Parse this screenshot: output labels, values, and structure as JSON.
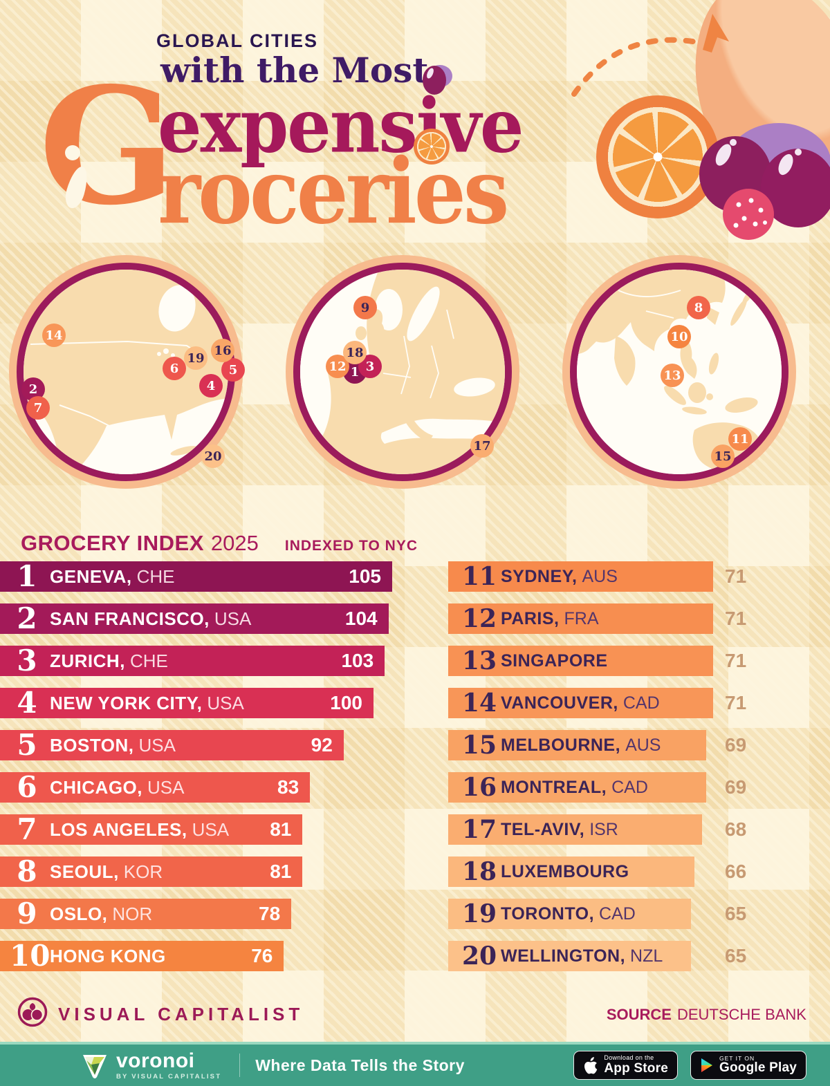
{
  "title": {
    "kicker": "GLOBAL CITIES",
    "subtitle": "with the Most",
    "word1": "expensive",
    "g": "G",
    "word2": "roceries"
  },
  "list_header": {
    "title": "GROCERY INDEX",
    "year": "2025",
    "note": "INDEXED TO NYC"
  },
  "colors": {
    "accent_magenta": "#a81b5c",
    "dark_purple": "#3b2457",
    "orange": "#f08048",
    "value_tan": "#c79a72",
    "map_ring_inner": "#9b1b5c",
    "map_ring_outer": "#f7bb8e",
    "land": "#f8dcae",
    "bottom_bar": "#3f9f86"
  },
  "rankings": [
    {
      "rank": 1,
      "city": "GENEVA",
      "country": "CHE",
      "value": 105,
      "color": "#8e1553",
      "map": 1,
      "mx": 101,
      "my": 170,
      "marker_text": "light"
    },
    {
      "rank": 2,
      "city": "SAN FRANCISCO",
      "country": "USA",
      "value": 104,
      "color": "#a31a59",
      "map": 0,
      "mx": 36,
      "my": 195,
      "marker_text": "light"
    },
    {
      "rank": 3,
      "city": "ZURICH",
      "country": "CHE",
      "value": 103,
      "color": "#c32257",
      "map": 1,
      "mx": 123,
      "my": 162,
      "marker_text": "light"
    },
    {
      "rank": 4,
      "city": "NEW YORK CITY",
      "country": "USA",
      "value": 100,
      "color": "#d93054",
      "map": 0,
      "mx": 293,
      "my": 190,
      "marker_text": "light"
    },
    {
      "rank": 5,
      "city": "BOSTON",
      "country": "USA",
      "value": 92,
      "color": "#e84650",
      "map": 0,
      "mx": 325,
      "my": 167,
      "marker_text": "light"
    },
    {
      "rank": 6,
      "city": "CHICAGO",
      "country": "USA",
      "value": 83,
      "color": "#ee574d",
      "map": 0,
      "mx": 240,
      "my": 165,
      "marker_text": "light"
    },
    {
      "rank": 7,
      "city": "LOS ANGELES",
      "country": "USA",
      "value": 81,
      "color": "#f0614b",
      "map": 0,
      "mx": 43,
      "my": 222,
      "marker_text": "light"
    },
    {
      "rank": 8,
      "city": "SEOUL",
      "country": "KOR",
      "value": 81,
      "color": "#f1654a",
      "map": 2,
      "mx": 198,
      "my": 77,
      "marker_text": "light"
    },
    {
      "rank": 9,
      "city": "OSLO",
      "country": "NOR",
      "value": 78,
      "color": "#f3784a",
      "map": 1,
      "mx": 116,
      "my": 77,
      "marker_text": "dark"
    },
    {
      "rank": 10,
      "city": "HONG KONG",
      "country": null,
      "value": 76,
      "color": "#f58440",
      "map": 2,
      "mx": 170,
      "my": 119,
      "marker_text": "light"
    },
    {
      "rank": 11,
      "city": "SYDNEY",
      "country": "AUS",
      "value": 71,
      "color": "#f78a4c",
      "map": 2,
      "mx": 258,
      "my": 267,
      "marker_text": "light"
    },
    {
      "rank": 12,
      "city": "PARIS",
      "country": "FRA",
      "value": 71,
      "color": "#f78e50",
      "map": 1,
      "mx": 76,
      "my": 162,
      "marker_text": "light"
    },
    {
      "rank": 13,
      "city": "SINGAPORE",
      "country": null,
      "value": 71,
      "color": "#f89254",
      "map": 2,
      "mx": 160,
      "my": 175,
      "marker_text": "light"
    },
    {
      "rank": 14,
      "city": "VANCOUVER",
      "country": "CAD",
      "value": 71,
      "color": "#f89658",
      "map": 0,
      "mx": 66,
      "my": 117,
      "marker_text": "light"
    },
    {
      "rank": 15,
      "city": "MELBOURNE",
      "country": "AUS",
      "value": 69,
      "color": "#f9a263",
      "map": 2,
      "mx": 233,
      "my": 292,
      "marker_text": "dark"
    },
    {
      "rank": 16,
      "city": "MONTREAL",
      "country": "CAD",
      "value": 69,
      "color": "#f9a667",
      "map": 0,
      "mx": 310,
      "my": 139,
      "marker_text": "dark"
    },
    {
      "rank": 17,
      "city": "TEL-AVIV",
      "country": "ISR",
      "value": 68,
      "color": "#faad70",
      "map": 1,
      "mx": 285,
      "my": 277,
      "marker_text": "dark"
    },
    {
      "rank": 18,
      "city": "LUXEMBOURG",
      "country": null,
      "value": 66,
      "color": "#fbb77c",
      "map": 1,
      "mx": 101,
      "my": 142,
      "marker_text": "dark"
    },
    {
      "rank": 19,
      "city": "TORONTO",
      "country": "CAD",
      "value": 65,
      "color": "#fbbd83",
      "map": 0,
      "mx": 271,
      "my": 150,
      "marker_text": "dark"
    },
    {
      "rank": 20,
      "city": "WELLINGTON",
      "country": "NZL",
      "value": 65,
      "color": "#fcc189",
      "map": 0,
      "mx": 296,
      "my": 292,
      "marker_text": "dark"
    }
  ],
  "footer": {
    "brand": "VISUAL CAPITALIST",
    "source_label": "SOURCE",
    "source_value": "DEUTSCHE BANK"
  },
  "bottom_bar": {
    "brand": "voronoi",
    "brand_sub": "BY VISUAL CAPITALIST",
    "tagline": "Where Data Tells the Story",
    "appstore_small": "Download on the",
    "appstore_big": "App Store",
    "googleplay_small": "GET IT ON",
    "googleplay_big": "Google Play"
  },
  "chart_data": {
    "type": "bar",
    "title": "Global Cities with the Most Expensive Groceries",
    "subtitle": "GROCERY INDEX 2025",
    "note": "INDEXED TO NYC",
    "source": "DEUTSCHE BANK",
    "categories": [
      "Geneva, CHE",
      "San Francisco, USA",
      "Zurich, CHE",
      "New York City, USA",
      "Boston, USA",
      "Chicago, USA",
      "Los Angeles, USA",
      "Seoul, KOR",
      "Oslo, NOR",
      "Hong Kong",
      "Sydney, AUS",
      "Paris, FRA",
      "Singapore",
      "Vancouver, CAD",
      "Melbourne, AUS",
      "Montreal, CAD",
      "Tel-Aviv, ISR",
      "Luxembourg",
      "Toronto, CAD",
      "Wellington, NZL"
    ],
    "values": [
      105,
      104,
      103,
      100,
      92,
      83,
      81,
      81,
      78,
      76,
      71,
      71,
      71,
      71,
      69,
      69,
      68,
      66,
      65,
      65
    ],
    "xlabel": "Grocery index (NYC = 100)",
    "xlim": [
      0,
      105
    ],
    "orientation": "horizontal",
    "legend": false
  }
}
